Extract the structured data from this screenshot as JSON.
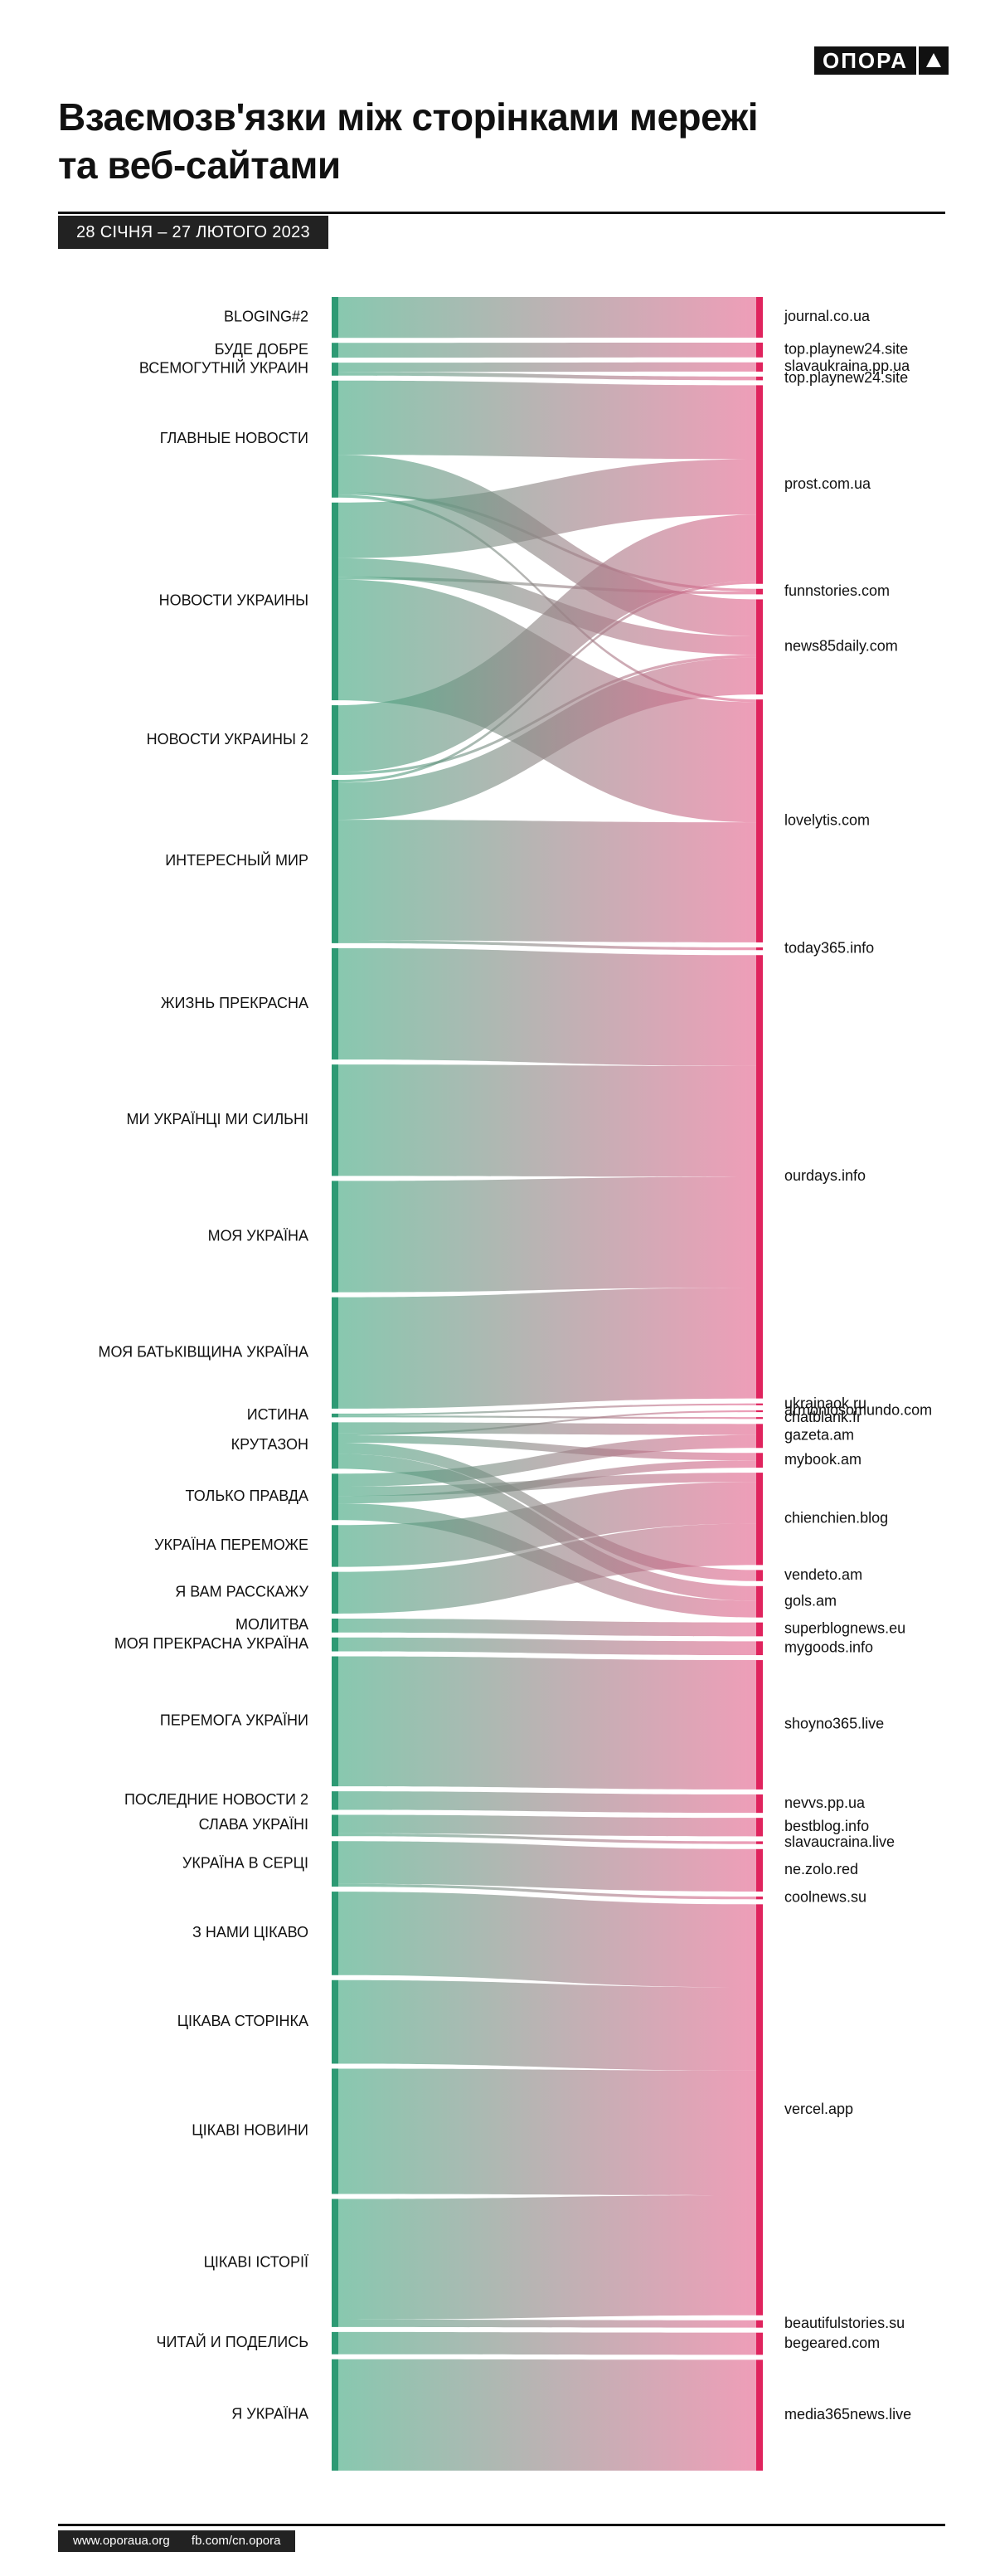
{
  "header": {
    "logo_text": "ОПОРА",
    "title_line1": "Взаємозв'язки між сторінками мережі",
    "title_line2": "та веб-сайтами",
    "date_range": "28 СІЧНЯ – 27 ЛЮТОГО 2023"
  },
  "footer": {
    "site": "www.oporaua.org",
    "facebook": "fb.com/cn.opora"
  },
  "colors": {
    "left_node": "#2e9a74",
    "right_node": "#e0245e",
    "link_start": "#3fa67e",
    "link_end": "#e4628c"
  },
  "diagram": {
    "type": "sankey",
    "left_nodes": [
      "BLOGING#2",
      "БУДЕ ДОБРЕ",
      "ВСЕМОГУТНІЙ УКРАИН",
      "ГЛАВНЫЕ НОВОСТИ",
      "НОВОСТИ УКРАИНЫ",
      "НОВОСТИ УКРАИНЫ 2",
      "ИНТЕРЕСНЫЙ МИР",
      "ЖИЗНЬ ПРЕКРАСНА",
      "МИ УКРАЇНЦІ МИ СИЛЬНІ",
      "МОЯ УКРАЇНА",
      "МОЯ БАТЬКІВЩИНА УКРАЇНА",
      "ИСТИНА",
      "КРУТАЗОН",
      "ТОЛЬКО ПРАВДА",
      "УКРАЇНА ПЕРЕМОЖЕ",
      "Я ВАМ РАССКАЖУ",
      "МОЛИТВА",
      "МОЯ ПРЕКРАСНА УКРАЇНА",
      "ПЕРЕМОГА УКРАЇНИ",
      "ПОСЛЕДНИЕ НОВОСТИ 2",
      "СЛАВА УКРАЇНІ",
      "УКРАЇНА В СЕРЦІ",
      "З НАМИ ЦІКАВО",
      "ЦІКАВА СТОРІНКА",
      "ЦІКАВІ НОВИНИ",
      "ЦІКАВІ ІСТОРІЇ",
      "ЧИТАЙ И ПОДЕЛИСЬ",
      "Я УКРАЇНА"
    ],
    "right_nodes": [
      "journal.co.ua",
      "top.playnew24.site",
      "slavaukraina.pp.ua",
      "top.playnew24.site",
      "prost.com.ua",
      "funnstories.com",
      "news85daily.com",
      "lovelytis.com",
      "today365.info",
      "ourdays.info",
      "ukrainaok.ru",
      "armoniosomundo.com",
      "chatblank.fr",
      "gazeta.am",
      "mybook.am",
      "chienchien.blog",
      "vendeto.am",
      "gols.am",
      "superblognews.eu",
      "mygoods.info",
      "shoyno365.live",
      "nevvs.pp.ua",
      "bestblog.info",
      "slavaucraina.live",
      "ne.zolo.red",
      "coolnews.su",
      "vercel.app",
      "beautifulstories.su",
      "begeared.com",
      "media365news.live"
    ],
    "links": [
      {
        "source": 0,
        "target": 0,
        "value": 44
      },
      {
        "source": 1,
        "target": 1,
        "value": 16
      },
      {
        "source": 2,
        "target": 2,
        "value": 10
      },
      {
        "source": 2,
        "target": 3,
        "value": 4
      },
      {
        "source": 3,
        "target": 4,
        "value": 80
      },
      {
        "source": 3,
        "target": 6,
        "value": 40
      },
      {
        "source": 3,
        "target": 5,
        "value": 3
      },
      {
        "source": 3,
        "target": 7,
        "value": 3
      },
      {
        "source": 4,
        "target": 4,
        "value": 60
      },
      {
        "source": 4,
        "target": 6,
        "value": 20
      },
      {
        "source": 4,
        "target": 5,
        "value": 3
      },
      {
        "source": 4,
        "target": 7,
        "value": 130
      },
      {
        "source": 5,
        "target": 4,
        "value": 72
      },
      {
        "source": 5,
        "target": 6,
        "value": 3
      },
      {
        "source": 6,
        "target": 4,
        "value": 3
      },
      {
        "source": 6,
        "target": 6,
        "value": 40
      },
      {
        "source": 6,
        "target": 7,
        "value": 130
      },
      {
        "source": 6,
        "target": 8,
        "value": 3
      },
      {
        "source": 7,
        "target": 9,
        "value": 120
      },
      {
        "source": 8,
        "target": 9,
        "value": 120
      },
      {
        "source": 9,
        "target": 9,
        "value": 120
      },
      {
        "source": 10,
        "target": 9,
        "value": 120
      },
      {
        "source": 11,
        "target": 10,
        "value": 2
      },
      {
        "source": 11,
        "target": 12,
        "value": 2
      },
      {
        "source": 12,
        "target": 13,
        "value": 12
      },
      {
        "source": 12,
        "target": 11,
        "value": 2
      },
      {
        "source": 12,
        "target": 14,
        "value": 8
      },
      {
        "source": 12,
        "target": 16,
        "value": 12
      },
      {
        "source": 12,
        "target": 17,
        "value": 16
      },
      {
        "source": 13,
        "target": 13,
        "value": 14
      },
      {
        "source": 13,
        "target": 15,
        "value": 10
      },
      {
        "source": 13,
        "target": 14,
        "value": 8
      },
      {
        "source": 13,
        "target": 17,
        "value": 18
      },
      {
        "source": 14,
        "target": 15,
        "value": 45
      },
      {
        "source": 15,
        "target": 15,
        "value": 45
      },
      {
        "source": 16,
        "target": 18,
        "value": 15
      },
      {
        "source": 17,
        "target": 19,
        "value": 15
      },
      {
        "source": 18,
        "target": 20,
        "value": 140
      },
      {
        "source": 19,
        "target": 21,
        "value": 20
      },
      {
        "source": 20,
        "target": 22,
        "value": 20
      },
      {
        "source": 20,
        "target": 23,
        "value": 3
      },
      {
        "source": 21,
        "target": 24,
        "value": 46
      },
      {
        "source": 21,
        "target": 25,
        "value": 3
      },
      {
        "source": 22,
        "target": 26,
        "value": 90
      },
      {
        "source": 23,
        "target": 26,
        "value": 90
      },
      {
        "source": 24,
        "target": 26,
        "value": 135
      },
      {
        "source": 25,
        "target": 26,
        "value": 130
      },
      {
        "source": 25,
        "target": 27,
        "value": 8
      },
      {
        "source": 26,
        "target": 28,
        "value": 24
      },
      {
        "source": 27,
        "target": 29,
        "value": 120
      }
    ]
  }
}
